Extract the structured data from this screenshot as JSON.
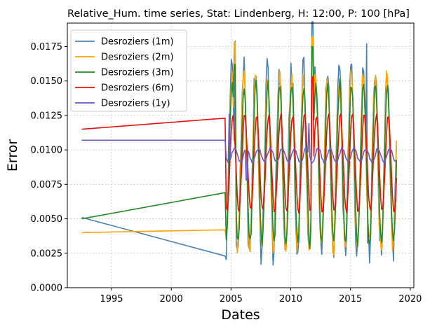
{
  "chart_data": {
    "type": "line",
    "title": "Relative_Hum. time series, Stat: Lindenberg, H: 12:00, P: 100 [hPa]",
    "xlabel": "Dates",
    "ylabel": "Error",
    "xlim": [
      1991.3,
      2020.3
    ],
    "ylim": [
      0,
      0.0192
    ],
    "xticks": [
      1995,
      2000,
      2005,
      2010,
      2015,
      2020
    ],
    "yticks": [
      0.0,
      0.0025,
      0.005,
      0.0075,
      0.01,
      0.0125,
      0.015,
      0.0175
    ],
    "ytick_labels": [
      "0.0000",
      "0.0025",
      "0.0050",
      "0.0075",
      "0.0100",
      "0.0125",
      "0.0150",
      "0.0175"
    ],
    "grid": true,
    "legend_position": "top-left",
    "series": [
      {
        "name": "Desroziers (1m)",
        "color": "#4682b4",
        "early": [
          [
            1992.5,
            0.0051
          ],
          [
            2004.5,
            0.0023
          ]
        ],
        "start": 2004.6,
        "end": 2018.9,
        "mean": 0.0092,
        "amp": 0.0068,
        "phase": 0.05,
        "noise": 0.0011,
        "lag": 0.0,
        "peaks": [
          [
            2005.35,
            0.0179
          ],
          [
            2011.8,
            0.0193
          ],
          [
            2016.35,
            0.0177
          ]
        ],
        "troughs": [
          [
            2013.6,
            0.0022
          ]
        ]
      },
      {
        "name": "Desroziers (2m)",
        "color": "#ffa500",
        "early": [
          [
            1992.5,
            0.004
          ],
          [
            2004.5,
            0.0042
          ]
        ],
        "start": 2004.6,
        "end": 2018.9,
        "mean": 0.0091,
        "amp": 0.0062,
        "phase": 0.06,
        "noise": 0.0007,
        "lag": 0.0,
        "peaks": [
          [
            2005.3,
            0.0178
          ],
          [
            2011.8,
            0.0182
          ]
        ],
        "troughs": [
          [
            2013.6,
            0.0024
          ]
        ]
      },
      {
        "name": "Desroziers (3m)",
        "color": "#228b22",
        "early": [
          [
            1992.5,
            0.005
          ],
          [
            2004.5,
            0.0069
          ]
        ],
        "start": 2004.6,
        "end": 2018.9,
        "mean": 0.009,
        "amp": 0.0058,
        "phase": 0.09,
        "noise": 0.0004,
        "lag": 0.0,
        "peaks": [
          [
            2005.3,
            0.0162
          ],
          [
            2011.8,
            0.0175
          ]
        ],
        "troughs": []
      },
      {
        "name": "Desroziers (6m)",
        "color": "#e8120c",
        "early": [
          [
            1992.5,
            0.0115
          ],
          [
            2004.5,
            0.0123
          ]
        ],
        "start": 2004.6,
        "end": 2018.9,
        "mean": 0.009,
        "amp": 0.0035,
        "phase": 0.15,
        "noise": 0.0002,
        "lag": 0.0,
        "peaks": [
          [
            2011.8,
            0.0153
          ]
        ],
        "troughs": []
      },
      {
        "name": "Desroziers (1y)",
        "color": "#6a5acd",
        "early": [
          [
            1992.5,
            0.0107
          ],
          [
            2004.5,
            0.0107
          ]
        ],
        "start": 2004.6,
        "end": 2018.9,
        "mean": 0.0096,
        "amp": 0.0005,
        "phase": 0.3,
        "noise": 0.0001,
        "lag": 0.0,
        "peaks": [
          [
            2004.85,
            0.0126
          ],
          [
            2011.5,
            0.0119
          ]
        ],
        "troughs": [
          [
            2006.3,
            0.0078
          ]
        ]
      }
    ]
  }
}
